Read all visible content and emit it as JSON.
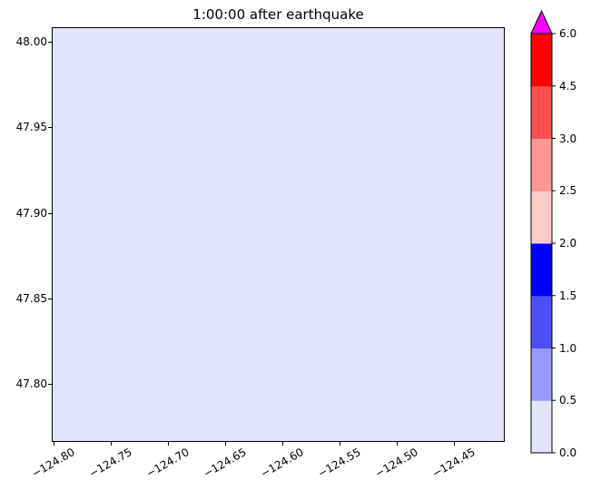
{
  "figure": {
    "title": "1:00:00 after earthquake",
    "background": "#ffffff"
  },
  "axes": {
    "fill_color": "#e3e3fb",
    "x_tick_labels": [
      "−124.80",
      "−124.75",
      "−124.70",
      "−124.65",
      "−124.60",
      "−124.55",
      "−124.50",
      "−124.45"
    ],
    "y_tick_labels": [
      "48.00",
      "47.95",
      "47.90",
      "47.85",
      "47.80"
    ]
  },
  "colorbar": {
    "tick_labels_top_to_bottom": [
      "6.0",
      "4.5",
      "3.0",
      "2.5",
      "2.0",
      "1.5",
      "1.0",
      "0.5",
      "0.0"
    ],
    "segments_bottom_to_top": [
      {
        "from": 0.0,
        "to": 0.5,
        "color": "#e3e3fb"
      },
      {
        "from": 0.5,
        "to": 1.0,
        "color": "#9999fc"
      },
      {
        "from": 1.0,
        "to": 1.5,
        "color": "#4d4dfa"
      },
      {
        "from": 1.5,
        "to": 2.0,
        "color": "#0000fe"
      },
      {
        "from": 2.0,
        "to": 2.5,
        "color": "#fdcaca"
      },
      {
        "from": 2.5,
        "to": 3.0,
        "color": "#fc9595"
      },
      {
        "from": 3.0,
        "to": 4.5,
        "color": "#fc4f4f"
      },
      {
        "from": 4.5,
        "to": 6.0,
        "color": "#fd0000"
      }
    ],
    "over_color": "#fb00fb",
    "extend": "max"
  },
  "chart_data": {
    "type": "heatmap",
    "title": "1:00:00 after earthquake",
    "xlabel": "",
    "ylabel": "",
    "xlim": [
      -124.8,
      -124.41
    ],
    "ylim": [
      47.77,
      48.01
    ],
    "x_ticks": [
      -124.8,
      -124.75,
      -124.7,
      -124.65,
      -124.6,
      -124.55,
      -124.5,
      -124.45
    ],
    "y_ticks": [
      48.0,
      47.95,
      47.9,
      47.85,
      47.8
    ],
    "field_description": "uniform field over entire mapped region; all cells fall in the lowest color bin",
    "constant_value_bin": [
      0.0,
      0.5
    ],
    "colorbar_boundaries": [
      0,
      0.5,
      1.0,
      1.5,
      2.0,
      2.5,
      3.0,
      4.5,
      6.0
    ],
    "colorbar_colors": [
      "#e3e3fb",
      "#9999fc",
      "#4d4dfa",
      "#0000fe",
      "#fdcaca",
      "#fc9595",
      "#fc4f4f",
      "#fd0000"
    ],
    "colorbar_over_color": "#fb00fb",
    "colorbar_spacing": "uniform",
    "grid": false,
    "legend": false
  }
}
